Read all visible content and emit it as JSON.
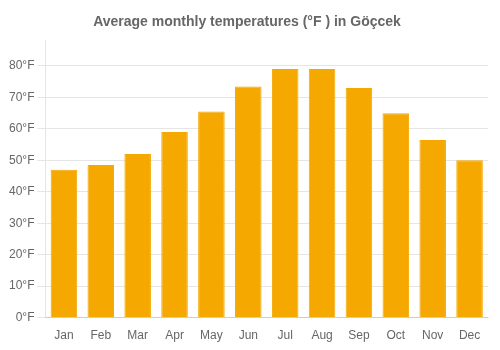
{
  "chart_data": {
    "type": "bar",
    "title": "Average monthly temperatures (°F ) in Göçcek",
    "categories": [
      "Jan",
      "Feb",
      "Mar",
      "Apr",
      "May",
      "Jun",
      "Jul",
      "Aug",
      "Sep",
      "Oct",
      "Nov",
      "Dec"
    ],
    "values": [
      47,
      48.5,
      52,
      59,
      65.5,
      73.5,
      79,
      79,
      73,
      65,
      56.5,
      50
    ],
    "color": "#F5A800",
    "ylim": [
      0,
      88
    ],
    "yticks": [
      {
        "value": 0,
        "label": "0°F"
      },
      {
        "value": 10,
        "label": "10°F"
      },
      {
        "value": 20,
        "label": "20°F"
      },
      {
        "value": 30,
        "label": "30°F"
      },
      {
        "value": 40,
        "label": "40°F"
      },
      {
        "value": 50,
        "label": "50°F"
      },
      {
        "value": 60,
        "label": "60°F"
      },
      {
        "value": 70,
        "label": "70°F"
      },
      {
        "value": 80,
        "label": "80°F"
      }
    ],
    "grid": true
  }
}
